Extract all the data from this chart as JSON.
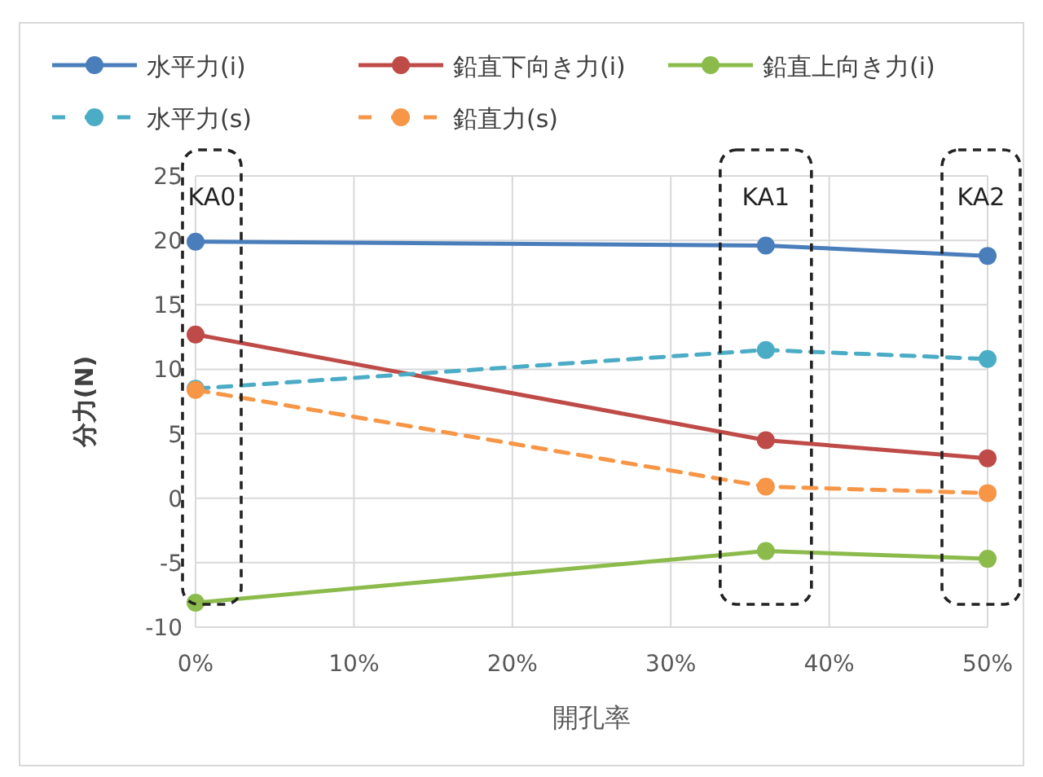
{
  "chart_data": {
    "type": "line",
    "xlabel": "開孔率",
    "ylabel": "分力(N)",
    "xlim": [
      0,
      50
    ],
    "xticks": [
      {
        "value": 0,
        "label": "0%"
      },
      {
        "value": 10,
        "label": "10%"
      },
      {
        "value": 20,
        "label": "20%"
      },
      {
        "value": 30,
        "label": "30%"
      },
      {
        "value": 40,
        "label": "40%"
      },
      {
        "value": 50,
        "label": "50%"
      }
    ],
    "ylim": [
      -10,
      25
    ],
    "yticks": [
      -10,
      -5,
      0,
      5,
      10,
      15,
      20,
      25
    ],
    "x": [
      0,
      36,
      50
    ],
    "series": [
      {
        "name": "水平力(i)",
        "color": "#4a7ebb",
        "values": [
          19.9,
          19.6,
          18.8
        ],
        "line_style": "solid"
      },
      {
        "name": "鉛直下向き力(i)",
        "color": "#be4b48",
        "values": [
          12.7,
          4.5,
          3.1
        ],
        "line_style": "solid"
      },
      {
        "name": "鉛直上向き力(i)",
        "color": "#8cbb4c",
        "values": [
          -8.1,
          -4.1,
          -4.7
        ],
        "line_style": "solid"
      },
      {
        "name": "水平力(s)",
        "color": "#4bacc6",
        "values": [
          8.5,
          11.5,
          10.8
        ],
        "line_style": "dashed"
      },
      {
        "name": "鉛直力(s)",
        "color": "#f79646",
        "values": [
          8.4,
          0.9,
          0.4
        ],
        "line_style": "dashed"
      }
    ],
    "marker": "circle",
    "grid": true,
    "legend": "top",
    "annotations": [
      "KA0",
      "KA1",
      "KA2"
    ]
  }
}
